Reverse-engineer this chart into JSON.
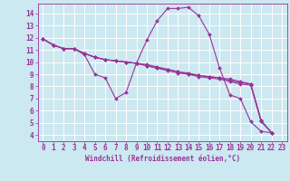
{
  "xlabel": "Windchill (Refroidissement éolien,°C)",
  "background_color": "#cce8f0",
  "line_color": "#993399",
  "marker": "D",
  "markersize": 2.0,
  "linewidth": 0.8,
  "xlim": [
    -0.5,
    23.5
  ],
  "ylim": [
    3.5,
    14.8
  ],
  "xticks": [
    0,
    1,
    2,
    3,
    4,
    5,
    6,
    7,
    8,
    9,
    10,
    11,
    12,
    13,
    14,
    15,
    16,
    17,
    18,
    19,
    20,
    21,
    22,
    23
  ],
  "yticks": [
    4,
    5,
    6,
    7,
    8,
    9,
    10,
    11,
    12,
    13,
    14
  ],
  "tick_fontsize": 5.5,
  "xlabel_fontsize": 5.5,
  "grid_color": "#ffffff",
  "series": [
    [
      11.9,
      11.4,
      11.1,
      11.1,
      10.6,
      9.0,
      8.7,
      7.0,
      7.5,
      9.9,
      11.8,
      13.4,
      14.4,
      14.4,
      14.5,
      13.8,
      12.3,
      9.5,
      7.3,
      7.0,
      5.1,
      4.3,
      4.2
    ],
    [
      11.9,
      11.4,
      11.1,
      11.1,
      10.7,
      10.4,
      10.2,
      10.1,
      10.0,
      9.9,
      9.7,
      9.5,
      9.3,
      9.1,
      9.0,
      8.8,
      8.7,
      8.6,
      8.4,
      8.2,
      8.1,
      5.1,
      4.2
    ],
    [
      11.9,
      11.4,
      11.1,
      11.1,
      10.7,
      10.4,
      10.2,
      10.1,
      10.0,
      9.9,
      9.7,
      9.5,
      9.4,
      9.2,
      9.0,
      8.9,
      8.8,
      8.7,
      8.5,
      8.3,
      8.2,
      5.2,
      4.2
    ],
    [
      11.9,
      11.4,
      11.1,
      11.1,
      10.7,
      10.4,
      10.2,
      10.1,
      10.0,
      9.9,
      9.8,
      9.6,
      9.4,
      9.2,
      9.1,
      8.9,
      8.8,
      8.7,
      8.6,
      8.4,
      8.2,
      5.2,
      4.2
    ]
  ]
}
